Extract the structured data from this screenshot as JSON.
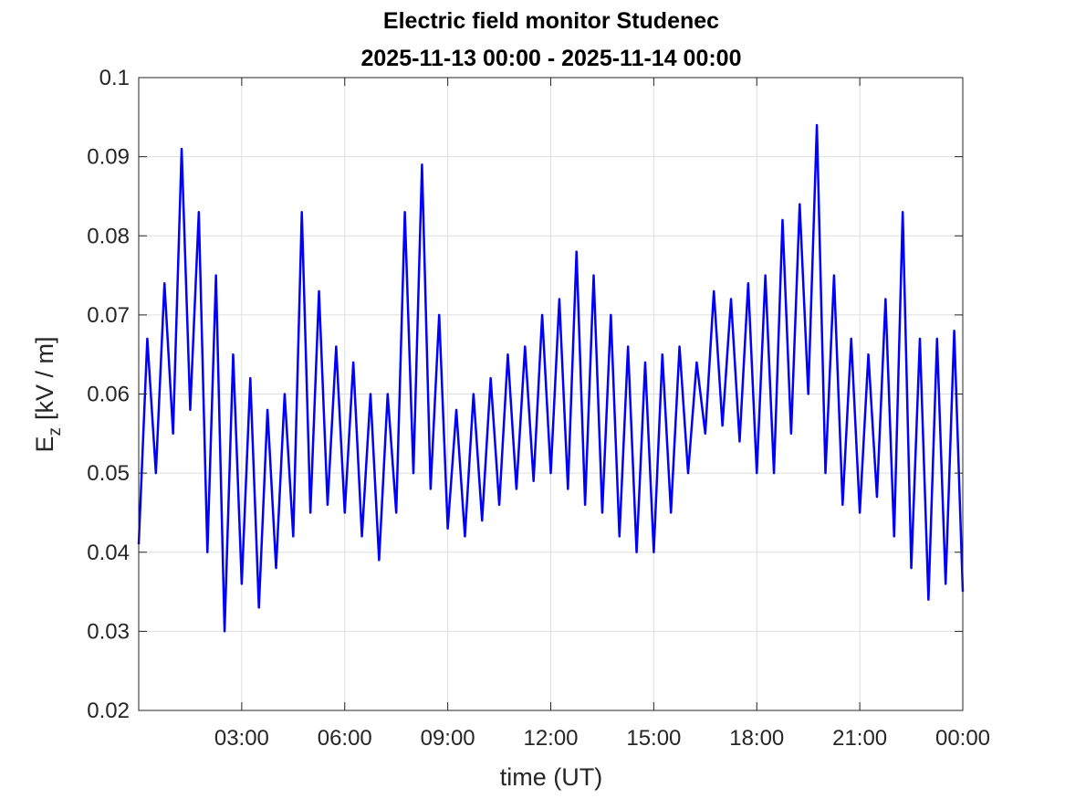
{
  "chart_data": {
    "type": "line",
    "title": [
      "Electric field monitor Studenec",
      "2025-11-13 00:00 - 2025-11-14 00:00"
    ],
    "xlabel": "time (UT)",
    "ylabel": {
      "symbol": "E",
      "subscript": "z",
      "unit": "[kV / m]"
    },
    "xlim": [
      0,
      24
    ],
    "xticks": [
      {
        "value": 3,
        "label": "03:00"
      },
      {
        "value": 6,
        "label": "06:00"
      },
      {
        "value": 9,
        "label": "09:00"
      },
      {
        "value": 12,
        "label": "12:00"
      },
      {
        "value": 15,
        "label": "15:00"
      },
      {
        "value": 18,
        "label": "18:00"
      },
      {
        "value": 21,
        "label": "21:00"
      },
      {
        "value": 24,
        "label": "00:00"
      }
    ],
    "ylim": [
      0.02,
      0.1
    ],
    "yticks": [
      0.02,
      0.03,
      0.04,
      0.05,
      0.06,
      0.07,
      0.08,
      0.09,
      0.1
    ],
    "grid": true,
    "x": [
      0,
      0.25,
      0.5,
      0.75,
      1,
      1.25,
      1.5,
      1.75,
      2,
      2.25,
      2.5,
      2.75,
      3,
      3.25,
      3.5,
      3.75,
      4,
      4.25,
      4.5,
      4.75,
      5,
      5.25,
      5.5,
      5.75,
      6,
      6.25,
      6.5,
      6.75,
      7,
      7.25,
      7.5,
      7.75,
      8,
      8.25,
      8.5,
      8.75,
      9,
      9.25,
      9.5,
      9.75,
      10,
      10.25,
      10.5,
      10.75,
      11,
      11.25,
      11.5,
      11.75,
      12,
      12.25,
      12.5,
      12.75,
      13,
      13.25,
      13.5,
      13.75,
      14,
      14.25,
      14.5,
      14.75,
      15,
      15.25,
      15.5,
      15.75,
      16,
      16.25,
      16.5,
      16.75,
      17,
      17.25,
      17.5,
      17.75,
      18,
      18.25,
      18.5,
      18.75,
      19,
      19.25,
      19.5,
      19.75,
      20,
      20.25,
      20.5,
      20.75,
      21,
      21.25,
      21.5,
      21.75,
      22,
      22.25,
      22.5,
      22.75,
      23,
      23.25,
      23.5,
      23.75,
      24
    ],
    "series": [
      {
        "color": "#0000ff",
        "values": [
          0.041,
          0.067,
          0.05,
          0.074,
          0.055,
          0.091,
          0.058,
          0.083,
          0.04,
          0.075,
          0.03,
          0.065,
          0.036,
          0.062,
          0.033,
          0.058,
          0.038,
          0.06,
          0.042,
          0.083,
          0.045,
          0.073,
          0.046,
          0.066,
          0.045,
          0.064,
          0.042,
          0.06,
          0.039,
          0.06,
          0.045,
          0.083,
          0.05,
          0.089,
          0.048,
          0.07,
          0.043,
          0.058,
          0.042,
          0.06,
          0.044,
          0.062,
          0.046,
          0.065,
          0.048,
          0.066,
          0.049,
          0.07,
          0.05,
          0.072,
          0.048,
          0.078,
          0.046,
          0.075,
          0.045,
          0.07,
          0.042,
          0.066,
          0.04,
          0.064,
          0.04,
          0.065,
          0.045,
          0.066,
          0.05,
          0.064,
          0.055,
          0.073,
          0.056,
          0.072,
          0.054,
          0.074,
          0.05,
          0.075,
          0.05,
          0.082,
          0.055,
          0.084,
          0.06,
          0.094,
          0.05,
          0.075,
          0.046,
          0.067,
          0.045,
          0.065,
          0.047,
          0.072,
          0.042,
          0.083,
          0.038,
          0.067,
          0.034,
          0.067,
          0.036,
          0.068,
          0.035
        ]
      }
    ]
  }
}
